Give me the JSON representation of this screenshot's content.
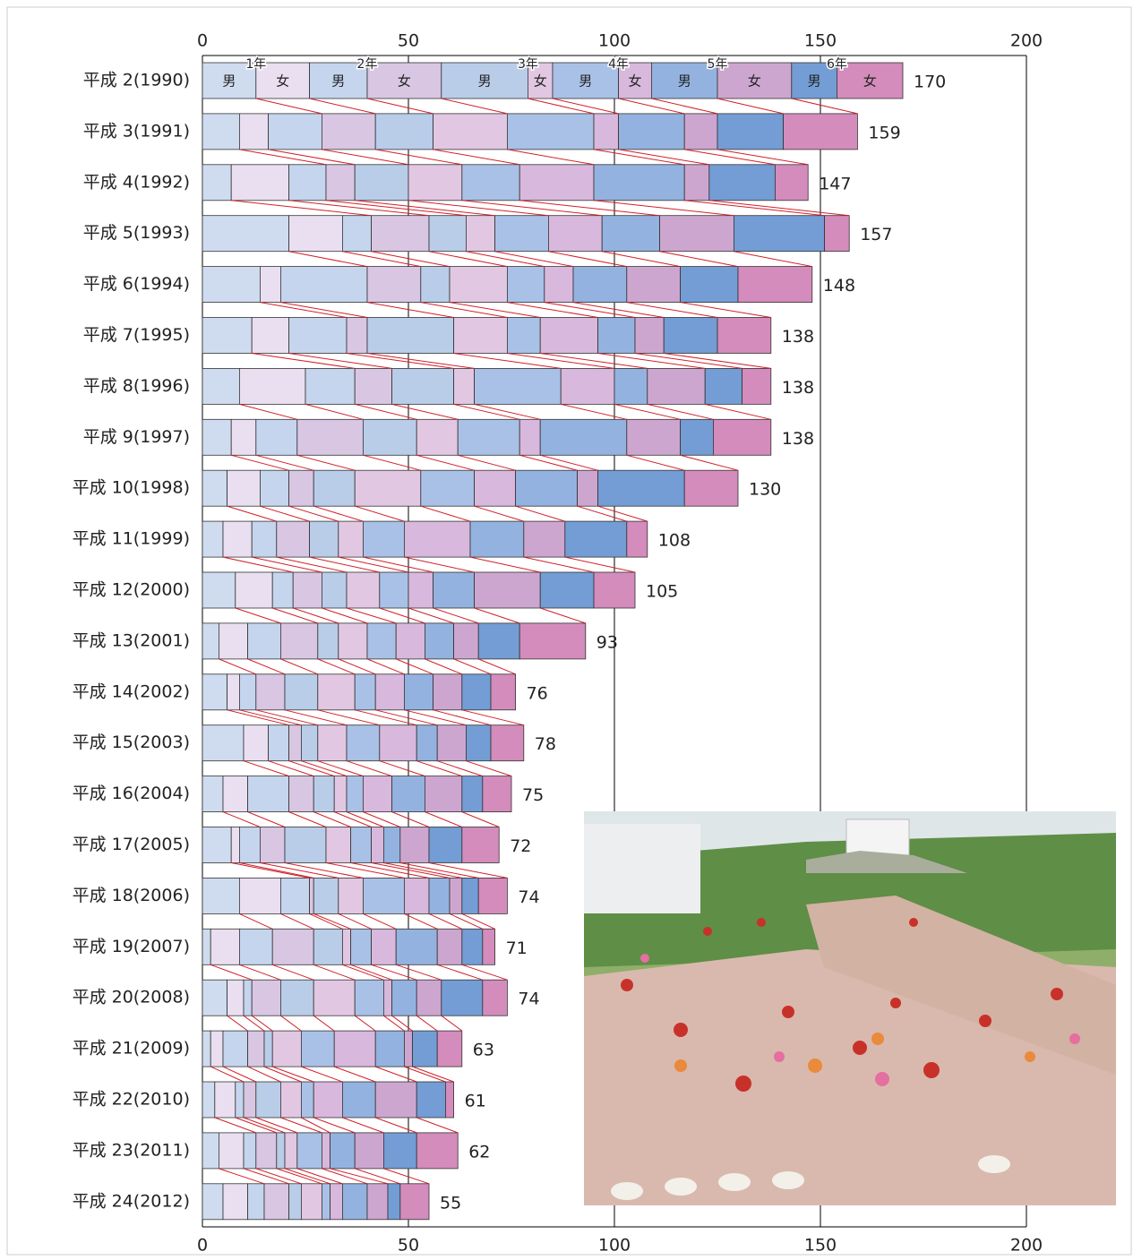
{
  "chart_data": {
    "type": "stacked-bar-horizontal",
    "categories": [
      "平成 2(1990)",
      "平成 3(1991)",
      "平成 4(1992)",
      "平成 5(1993)",
      "平成 6(1994)",
      "平成 7(1995)",
      "平成 8(1996)",
      "平成 9(1997)",
      "平成 10(1998)",
      "平成 11(1999)",
      "平成 12(2000)",
      "平成 13(2001)",
      "平成 14(2002)",
      "平成 15(2003)",
      "平成 16(2004)",
      "平成 17(2005)",
      "平成 18(2006)",
      "平成 19(2007)",
      "平成 20(2008)",
      "平成 21(2009)",
      "平成 22(2010)",
      "平成 23(2011)",
      "平成 24(2012)"
    ],
    "groups": [
      "1年",
      "2年",
      "3年",
      "4年",
      "5年",
      "6年"
    ],
    "series": [
      {
        "name": "男",
        "color": "#cfdcf0",
        "values": [
          13,
          9,
          7,
          21,
          14,
          12,
          9,
          7,
          6,
          5,
          8,
          4,
          6,
          10,
          5,
          7,
          9,
          2,
          6,
          2,
          3,
          4,
          5
        ]
      },
      {
        "name": "女",
        "color": "#eadff0",
        "values": [
          13,
          7,
          14,
          13,
          5,
          9,
          16,
          6,
          8,
          7,
          9,
          7,
          3,
          6,
          6,
          2,
          10,
          7,
          4,
          3,
          5,
          6,
          6
        ]
      },
      {
        "name": "男",
        "color": "#c5d5ee",
        "values": [
          14,
          13,
          9,
          7,
          21,
          14,
          12,
          10,
          7,
          6,
          5,
          8,
          4,
          5,
          10,
          5,
          7,
          8,
          2,
          6,
          2,
          3,
          4
        ]
      },
      {
        "name": "女",
        "color": "#d8c6e2",
        "values": [
          18,
          13,
          7,
          14,
          13,
          5,
          9,
          16,
          6,
          8,
          7,
          9,
          7,
          3,
          6,
          6,
          1,
          10,
          7,
          4,
          3,
          5,
          6
        ]
      },
      {
        "name": "男",
        "color": "#b9cde9",
        "values": [
          21,
          14,
          13,
          9,
          7,
          21,
          15,
          13,
          10,
          7,
          6,
          5,
          8,
          4,
          5,
          10,
          6,
          7,
          8,
          2,
          6,
          2,
          3
        ]
      },
      {
        "name": "女",
        "color": "#e2c7e2",
        "values": [
          6,
          18,
          13,
          7,
          14,
          13,
          5,
          10,
          16,
          6,
          8,
          7,
          9,
          7,
          3,
          6,
          6,
          2,
          10,
          7,
          5,
          3,
          5
        ]
      },
      {
        "name": "男",
        "color": "#a9c1e6",
        "values": [
          16,
          21,
          14,
          13,
          9,
          8,
          21,
          15,
          13,
          10,
          7,
          7,
          5,
          8,
          4,
          5,
          10,
          5,
          7,
          8,
          3,
          6,
          2
        ]
      },
      {
        "name": "女",
        "color": "#d8b8dc",
        "values": [
          8,
          6,
          18,
          13,
          7,
          14,
          13,
          5,
          10,
          16,
          6,
          7,
          7,
          9,
          7,
          3,
          6,
          6,
          2,
          10,
          7,
          2,
          3
        ]
      },
      {
        "name": "男",
        "color": "#93b2df",
        "values": [
          16,
          16,
          22,
          14,
          13,
          9,
          8,
          21,
          15,
          13,
          10,
          7,
          7,
          5,
          8,
          4,
          5,
          10,
          6,
          7,
          8,
          6,
          6
        ]
      },
      {
        "name": "女",
        "color": "#cda6d0",
        "values": [
          18,
          8,
          6,
          18,
          13,
          7,
          14,
          13,
          5,
          10,
          16,
          6,
          7,
          7,
          9,
          7,
          3,
          6,
          6,
          2,
          10,
          7,
          5
        ]
      },
      {
        "name": "男",
        "color": "#739dd4",
        "values": [
          11,
          16,
          16,
          22,
          14,
          13,
          9,
          8,
          21,
          15,
          13,
          10,
          7,
          6,
          5,
          8,
          4,
          5,
          10,
          6,
          7,
          8,
          3
        ]
      },
      {
        "name": "女",
        "color": "#d38cbb",
        "values": [
          16,
          18,
          8,
          6,
          18,
          13,
          7,
          14,
          13,
          5,
          10,
          16,
          6,
          8,
          7,
          9,
          7,
          3,
          6,
          6,
          2,
          10,
          7
        ]
      }
    ],
    "totals": [
      170,
      159,
      147,
      157,
      148,
      138,
      138,
      138,
      130,
      108,
      105,
      93,
      76,
      78,
      75,
      72,
      74,
      71,
      74,
      63,
      61,
      62,
      55
    ],
    "xlim": [
      0,
      200
    ],
    "xticks": [
      0,
      50,
      100,
      150,
      200
    ]
  }
}
